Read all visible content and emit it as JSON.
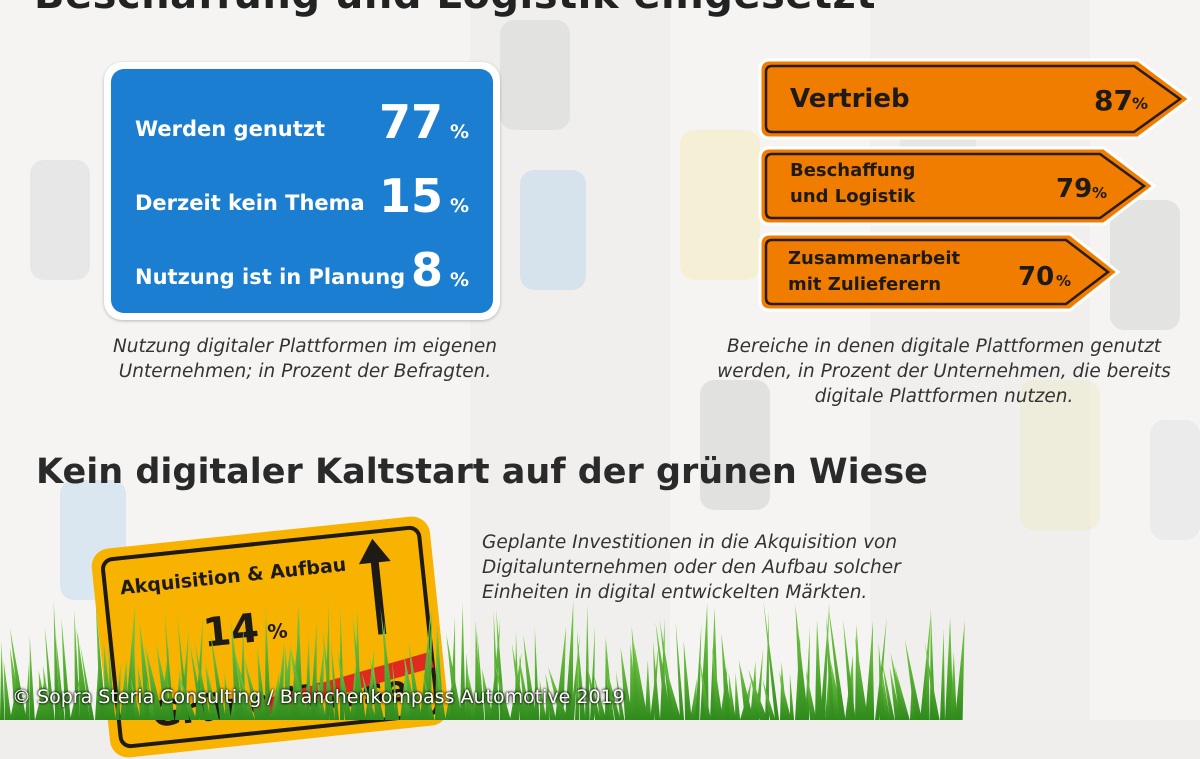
{
  "top_title": "Beschaffung und Logistik eingesetzt",
  "usage_sign": {
    "rows": [
      {
        "label": "Werden genutzt",
        "value": "77",
        "unit": "%"
      },
      {
        "label": "Derzeit kein Thema",
        "value": "15",
        "unit": "%"
      },
      {
        "label": "Nutzung ist in Planung",
        "value": "8",
        "unit": "%"
      }
    ],
    "caption_line1": "Nutzung digitaler Plattformen im eigenen",
    "caption_line2": "Unternehmen; in Prozent der Befragten."
  },
  "areas": {
    "items": [
      {
        "label_line1": "Vertrieb",
        "label_line2": "",
        "value": "87",
        "unit": "%"
      },
      {
        "label_line1": "Beschaffung",
        "label_line2": "und Logistik",
        "value": "79",
        "unit": "%"
      },
      {
        "label_line1": "Zusammenarbeit",
        "label_line2": "mit Zulieferern",
        "value": "70",
        "unit": "%"
      }
    ],
    "caption_line1": "Bereiche in denen digitale Plattformen genutzt",
    "caption_line2": "werden, in Prozent der Unternehmen, die bereits",
    "caption_line3": "digitale Plattformen nutzen."
  },
  "section2": {
    "heading": "Kein digitaler Kaltstart auf der grünen Wiese",
    "caption_line1": "Geplante Investitionen in die Akquisition von",
    "caption_line2": "Digitalunternehmen oder den Aufbau solcher",
    "caption_line3": "Einheiten in digital entwickelten Märkten.",
    "sign_label": "Akquisition & Aufbau",
    "sign_value": "14",
    "sign_unit": "%",
    "sign_bottom": "Grüne Wiese"
  },
  "copyright": "© Sopra Steria Consulting / Branchenkompass Automotive 2019",
  "colors": {
    "blue": "#1b7ed0",
    "orange": "#f07d00",
    "yellow": "#f8b300",
    "red": "#e02a1f",
    "grass": "#4caf2c"
  }
}
